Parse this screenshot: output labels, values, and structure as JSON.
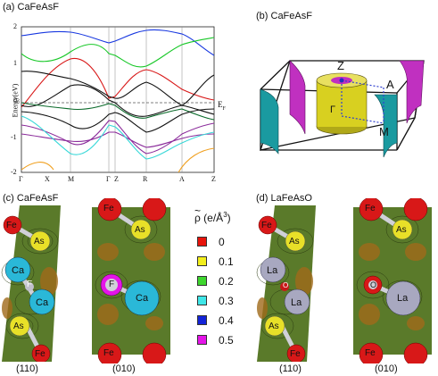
{
  "panels": {
    "a": {
      "label": "(a) CaFeAsF",
      "ylabel": "Energy(eV)",
      "yticks": [
        "2",
        "1",
        "0",
        "-1",
        "-2"
      ],
      "kpoints": [
        "Γ",
        "X",
        "M",
        "Γ",
        "Z",
        "R",
        "A",
        "Z"
      ],
      "fermi_label": "E",
      "fermi_sub": "F"
    },
    "b": {
      "label": "(b) CaFeAsF",
      "points": [
        "Z",
        "A",
        "Γ",
        "M"
      ]
    },
    "c": {
      "label": "(c) CaFeAsF",
      "atoms_110": [
        "Fe",
        "As",
        "Ca",
        "F",
        "Ca",
        "As",
        "Fe"
      ],
      "atoms_010": [
        "Fe",
        "As",
        "F",
        "Ca",
        "Fe"
      ],
      "sub_110": "(110)",
      "sub_010": "(010)"
    },
    "d": {
      "label": "(d) LaFeAsO",
      "atoms_110": [
        "Fe",
        "As",
        "La",
        "O",
        "La",
        "As",
        "Fe"
      ],
      "atoms_010": [
        "Fe",
        "As",
        "O",
        "La",
        "Fe"
      ],
      "sub_110": "(110)",
      "sub_010": "(010)"
    }
  },
  "legend": {
    "title_symbol": "ρ",
    "title_unit": "(e/Å",
    "title_exp": "3",
    "title_close": ")",
    "items": [
      {
        "value": "0",
        "color": "#e8140c"
      },
      {
        "value": "0.1",
        "color": "#f2ee1c"
      },
      {
        "value": "0.2",
        "color": "#3ed62e"
      },
      {
        "value": "0.3",
        "color": "#3fe6e8"
      },
      {
        "value": "0.4",
        "color": "#1424d8"
      },
      {
        "value": "0.5",
        "color": "#e414e8"
      }
    ]
  },
  "colors": {
    "band_black": "#111111",
    "band_red": "#d81818",
    "band_green": "#18c828",
    "band_blue": "#1838e0",
    "band_cyan": "#38d8d8",
    "band_purple": "#8a2a9a",
    "band_orange": "#f0a020",
    "fs_cyan": "#1a9aa0",
    "fs_magenta": "#c030c0",
    "fs_yellow": "#d8d020",
    "atom_red": "#d81818",
    "atom_yellow": "#e8e028",
    "atom_cyan": "#2ab8d8",
    "atom_purple": "#a8a8c0",
    "map_bg": "#5a7a2a"
  }
}
